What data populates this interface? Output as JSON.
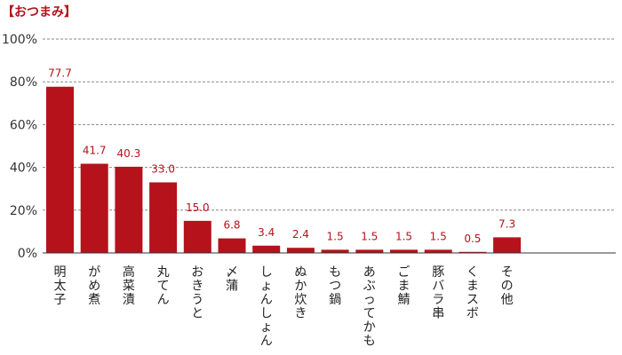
{
  "chart_data": {
    "type": "bar",
    "title": "【おつまみ】",
    "categories": [
      "明太子",
      "がめ煮",
      "高菜漬",
      "丸てん",
      "おきうと",
      "〆蒲",
      "しょんしょん",
      "ぬか炊き",
      "もつ鍋",
      "あぶってかも",
      "ごま鯖",
      "豚バラ串",
      "くまスボ",
      "その他"
    ],
    "values": [
      77.7,
      41.7,
      40.3,
      33.0,
      15.0,
      6.8,
      3.4,
      2.4,
      1.5,
      1.5,
      1.5,
      1.5,
      0.5,
      7.3
    ],
    "value_labels": [
      "77.7",
      "41.7",
      "40.3",
      "33.0",
      "15.0",
      "6.8",
      "3.4",
      "2.4",
      "1.5",
      "1.5",
      "1.5",
      "1.5",
      "0.5",
      "7.3"
    ],
    "yticks": [
      "0%",
      "20%",
      "40%",
      "60%",
      "80%",
      "100%"
    ],
    "ylim": [
      0,
      100
    ],
    "grid": true,
    "colors": {
      "bar": "#b5121b",
      "label": "#b5121b",
      "grid": "#888888",
      "axis": "#333333"
    }
  }
}
